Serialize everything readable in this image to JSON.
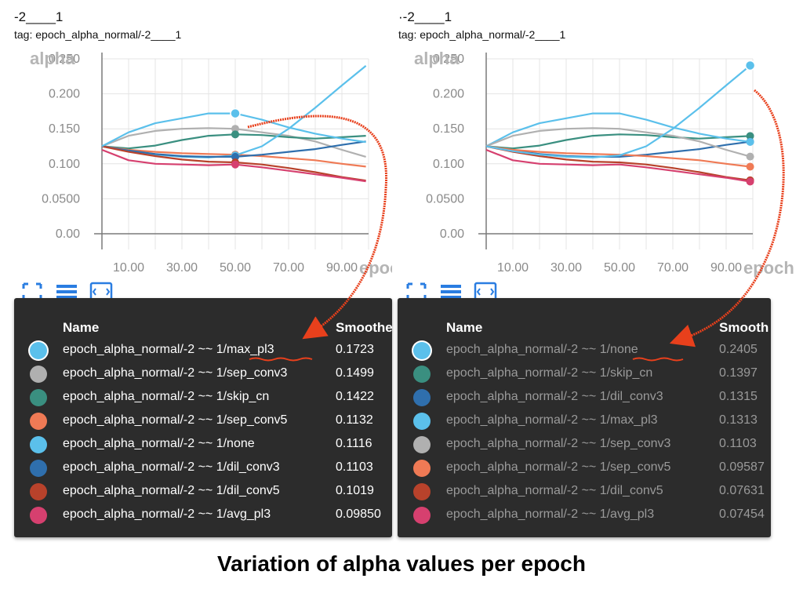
{
  "caption": "Variation of alpha values per epoch",
  "panels": [
    {
      "run_title": "-2____1",
      "tag": "tag: epoch_alpha_normal/-2____1",
      "header": {
        "name": "Name",
        "smoothed": "Smoothe"
      },
      "rows": [
        {
          "name": "epoch_alpha_normal/-2 ~~ 1/max_pl3",
          "value": "0.1723"
        },
        {
          "name": "epoch_alpha_normal/-2 ~~ 1/sep_conv3",
          "value": "0.1499"
        },
        {
          "name": "epoch_alpha_normal/-2 ~~ 1/skip_cn",
          "value": "0.1422"
        },
        {
          "name": "epoch_alpha_normal/-2 ~~ 1/sep_conv5",
          "value": "0.1132"
        },
        {
          "name": "epoch_alpha_normal/-2 ~~ 1/none",
          "value": "0.1116"
        },
        {
          "name": "epoch_alpha_normal/-2 ~~ 1/dil_conv3",
          "value": "0.1103"
        },
        {
          "name": "epoch_alpha_normal/-2 ~~ 1/dil_conv5",
          "value": "0.1019"
        },
        {
          "name": "epoch_alpha_normal/-2 ~~ 1/avg_pl3",
          "value": "0.09850"
        }
      ]
    },
    {
      "run_title": "·-2____1",
      "tag": "tag: epoch_alpha_normal/-2____1",
      "header": {
        "name": "Name",
        "smoothed": "Smooth"
      },
      "rows": [
        {
          "name": "epoch_alpha_normal/-2 ~~ 1/none",
          "value": "0.2405"
        },
        {
          "name": "epoch_alpha_normal/-2 ~~ 1/skip_cn",
          "value": "0.1397"
        },
        {
          "name": "epoch_alpha_normal/-2 ~~ 1/dil_conv3",
          "value": "0.1315"
        },
        {
          "name": "epoch_alpha_normal/-2 ~~ 1/max_pl3",
          "value": "0.1313"
        },
        {
          "name": "epoch_alpha_normal/-2 ~~ 1/sep_conv3",
          "value": "0.1103"
        },
        {
          "name": "epoch_alpha_normal/-2 ~~ 1/sep_conv5",
          "value": "0.09587"
        },
        {
          "name": "epoch_alpha_normal/-2 ~~ 1/dil_conv5",
          "value": "0.07631"
        },
        {
          "name": "epoch_alpha_normal/-2 ~~ 1/avg_pl3",
          "value": "0.07454"
        }
      ]
    }
  ],
  "chart_data": [
    {
      "type": "line",
      "xlabel": "epoch",
      "ylabel": "alpha",
      "xlim": [
        0,
        100
      ],
      "ylim": [
        0,
        0.25
      ],
      "xticks": [
        "10.00",
        "30.00",
        "50.00",
        "70.00",
        "90.00"
      ],
      "yticks": [
        "0.00",
        "0.0500",
        "0.100",
        "0.150",
        "0.200",
        "0.250"
      ],
      "grid": true,
      "marker_x": 50,
      "series": [
        {
          "name": "max_pl3",
          "color": "#5bc0eb",
          "selected": true,
          "x": [
            0,
            10,
            20,
            30,
            40,
            50,
            60,
            70,
            80,
            90,
            99
          ],
          "y": [
            0.125,
            0.145,
            0.158,
            0.165,
            0.172,
            0.172,
            0.163,
            0.152,
            0.143,
            0.136,
            0.131
          ]
        },
        {
          "name": "sep_conv3",
          "color": "#b0b0b0",
          "x": [
            0,
            10,
            20,
            30,
            40,
            50,
            60,
            70,
            80,
            90,
            99
          ],
          "y": [
            0.125,
            0.14,
            0.147,
            0.15,
            0.151,
            0.15,
            0.145,
            0.14,
            0.132,
            0.12,
            0.11
          ]
        },
        {
          "name": "skip_cn",
          "color": "#3a8f80",
          "x": [
            0,
            10,
            20,
            30,
            40,
            50,
            60,
            70,
            80,
            90,
            99
          ],
          "y": [
            0.125,
            0.122,
            0.126,
            0.134,
            0.14,
            0.142,
            0.141,
            0.138,
            0.136,
            0.138,
            0.14
          ]
        },
        {
          "name": "sep_conv5",
          "color": "#ef7a55",
          "x": [
            0,
            10,
            20,
            30,
            40,
            50,
            60,
            70,
            80,
            90,
            99
          ],
          "y": [
            0.125,
            0.12,
            0.117,
            0.115,
            0.114,
            0.113,
            0.111,
            0.108,
            0.105,
            0.1,
            0.096
          ]
        },
        {
          "name": "none",
          "color": "#5bc0eb",
          "x": [
            0,
            10,
            20,
            30,
            40,
            50,
            60,
            70,
            80,
            90,
            99
          ],
          "y": [
            0.125,
            0.118,
            0.113,
            0.11,
            0.109,
            0.112,
            0.125,
            0.15,
            0.18,
            0.212,
            0.24
          ]
        },
        {
          "name": "dil_conv3",
          "color": "#2f6fad",
          "x": [
            0,
            10,
            20,
            30,
            40,
            50,
            60,
            70,
            80,
            90,
            99
          ],
          "y": [
            0.125,
            0.119,
            0.114,
            0.111,
            0.11,
            0.11,
            0.113,
            0.117,
            0.121,
            0.127,
            0.132
          ]
        },
        {
          "name": "dil_conv5",
          "color": "#b8422b",
          "x": [
            0,
            10,
            20,
            30,
            40,
            50,
            60,
            70,
            80,
            90,
            99
          ],
          "y": [
            0.125,
            0.117,
            0.111,
            0.106,
            0.103,
            0.102,
            0.099,
            0.094,
            0.088,
            0.081,
            0.076
          ]
        },
        {
          "name": "avg_pl3",
          "color": "#d6406f",
          "x": [
            0,
            10,
            20,
            30,
            40,
            50,
            60,
            70,
            80,
            90,
            99
          ],
          "y": [
            0.12,
            0.105,
            0.1,
            0.099,
            0.098,
            0.099,
            0.095,
            0.09,
            0.085,
            0.08,
            0.075
          ]
        }
      ]
    },
    {
      "type": "line",
      "xlabel": "epoch",
      "ylabel": "alpha",
      "xlim": [
        0,
        100
      ],
      "ylim": [
        0,
        0.25
      ],
      "xticks": [
        "10.00",
        "30.00",
        "50.00",
        "70.00",
        "90.00"
      ],
      "yticks": [
        "0.00",
        "0.0500",
        "0.100",
        "0.150",
        "0.200",
        "0.250"
      ],
      "grid": true,
      "marker_x": 99,
      "series": [
        {
          "name": "none",
          "color": "#5bc0eb",
          "selected": true,
          "x": [
            0,
            10,
            20,
            30,
            40,
            50,
            60,
            70,
            80,
            90,
            99
          ],
          "y": [
            0.125,
            0.118,
            0.113,
            0.11,
            0.109,
            0.112,
            0.125,
            0.15,
            0.18,
            0.212,
            0.2405
          ]
        },
        {
          "name": "skip_cn",
          "color": "#3a8f80",
          "x": [
            0,
            10,
            20,
            30,
            40,
            50,
            60,
            70,
            80,
            90,
            99
          ],
          "y": [
            0.125,
            0.122,
            0.126,
            0.134,
            0.14,
            0.142,
            0.141,
            0.138,
            0.136,
            0.138,
            0.1397
          ]
        },
        {
          "name": "dil_conv3",
          "color": "#2f6fad",
          "x": [
            0,
            10,
            20,
            30,
            40,
            50,
            60,
            70,
            80,
            90,
            99
          ],
          "y": [
            0.125,
            0.119,
            0.114,
            0.111,
            0.11,
            0.11,
            0.113,
            0.117,
            0.121,
            0.127,
            0.1315
          ]
        },
        {
          "name": "max_pl3",
          "color": "#5bc0eb",
          "x": [
            0,
            10,
            20,
            30,
            40,
            50,
            60,
            70,
            80,
            90,
            99
          ],
          "y": [
            0.125,
            0.145,
            0.158,
            0.165,
            0.172,
            0.172,
            0.163,
            0.152,
            0.143,
            0.136,
            0.1313
          ]
        },
        {
          "name": "sep_conv3",
          "color": "#b0b0b0",
          "x": [
            0,
            10,
            20,
            30,
            40,
            50,
            60,
            70,
            80,
            90,
            99
          ],
          "y": [
            0.125,
            0.14,
            0.147,
            0.15,
            0.151,
            0.15,
            0.145,
            0.14,
            0.132,
            0.12,
            0.1103
          ]
        },
        {
          "name": "sep_conv5",
          "color": "#ef7a55",
          "x": [
            0,
            10,
            20,
            30,
            40,
            50,
            60,
            70,
            80,
            90,
            99
          ],
          "y": [
            0.125,
            0.12,
            0.117,
            0.115,
            0.114,
            0.113,
            0.111,
            0.108,
            0.105,
            0.1,
            0.09587
          ]
        },
        {
          "name": "dil_conv5",
          "color": "#b8422b",
          "x": [
            0,
            10,
            20,
            30,
            40,
            50,
            60,
            70,
            80,
            90,
            99
          ],
          "y": [
            0.125,
            0.117,
            0.111,
            0.106,
            0.103,
            0.102,
            0.099,
            0.094,
            0.088,
            0.081,
            0.07631
          ]
        },
        {
          "name": "avg_pl3",
          "color": "#d6406f",
          "x": [
            0,
            10,
            20,
            30,
            40,
            50,
            60,
            70,
            80,
            90,
            99
          ],
          "y": [
            0.12,
            0.105,
            0.1,
            0.099,
            0.098,
            0.099,
            0.095,
            0.09,
            0.085,
            0.08,
            0.07454
          ]
        }
      ]
    }
  ]
}
